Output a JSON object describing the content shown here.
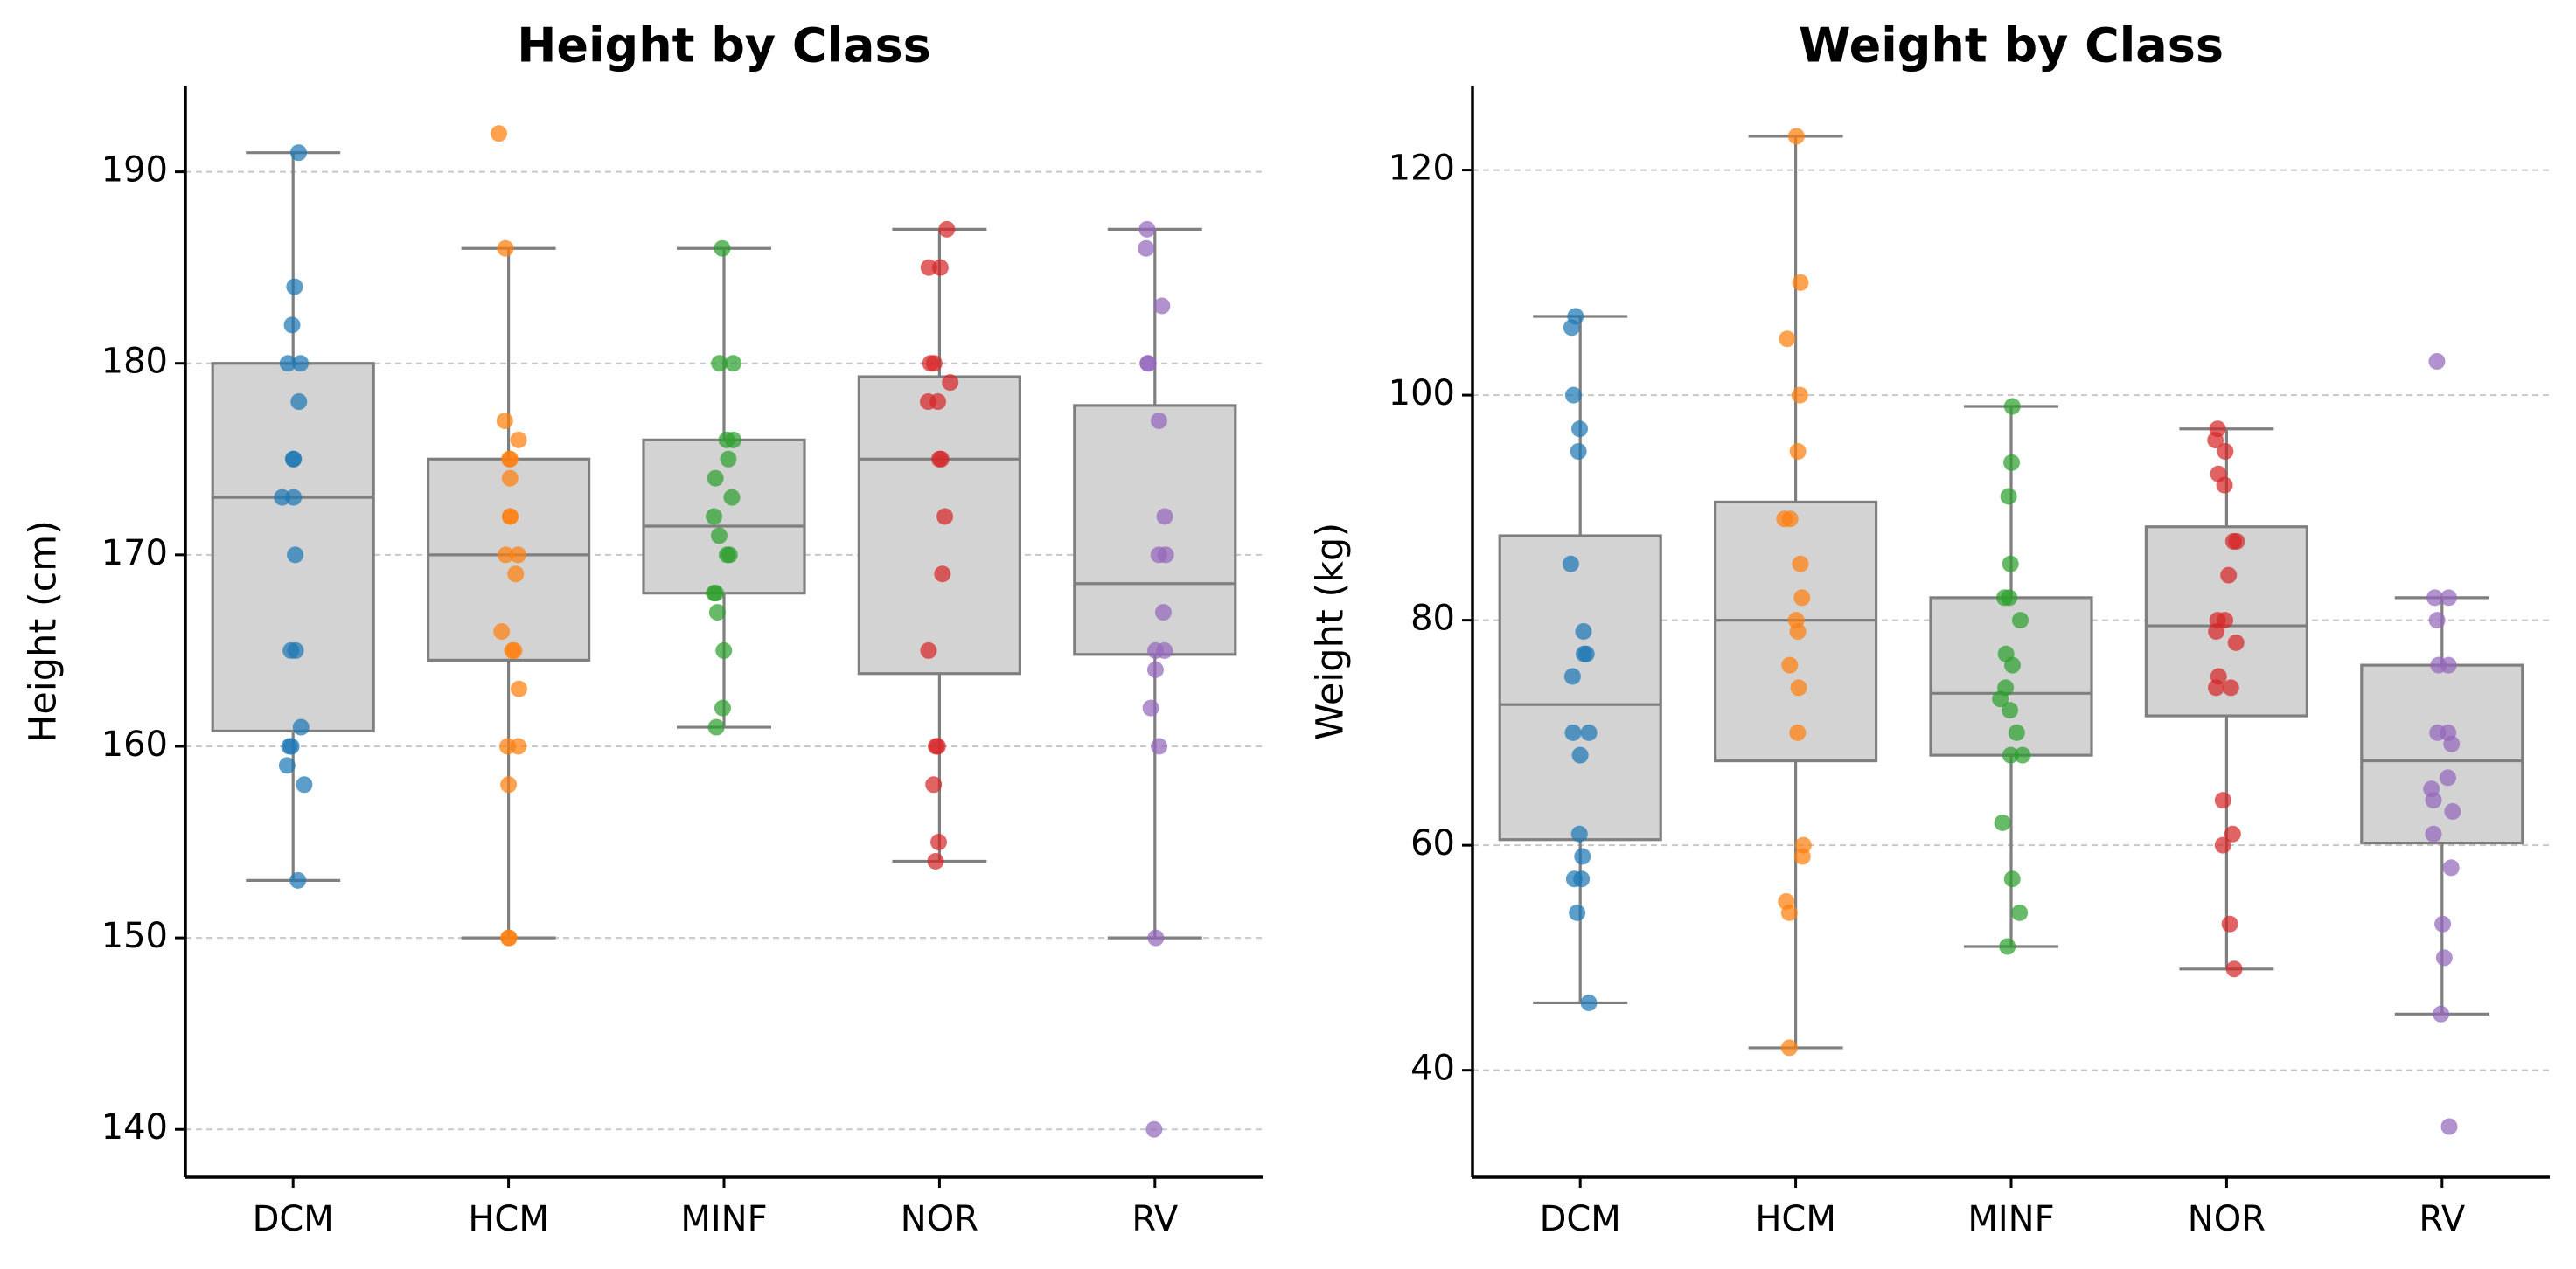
{
  "chart_data": [
    {
      "type": "box",
      "title": "Height by Class",
      "xlabel": "",
      "ylabel": "Height (cm)",
      "ylim": [
        137.5,
        194.5
      ],
      "yticks": [
        140,
        150,
        160,
        170,
        180,
        190
      ],
      "grid": "y dashed",
      "categories": [
        "DCM",
        "HCM",
        "MINF",
        "NOR",
        "RV"
      ],
      "box_color": "#d3d3d3",
      "boxes": [
        {
          "category": "DCM",
          "min": 153,
          "q1": 160.8,
          "median": 173,
          "q3": 180,
          "max": 191
        },
        {
          "category": "HCM",
          "min": 150,
          "q1": 164.5,
          "median": 170,
          "q3": 175,
          "max": 186
        },
        {
          "category": "MINF",
          "min": 161,
          "q1": 168,
          "median": 171.5,
          "q3": 176,
          "max": 186
        },
        {
          "category": "NOR",
          "min": 154,
          "q1": 163.8,
          "median": 175,
          "q3": 179.3,
          "max": 187
        },
        {
          "category": "RV",
          "min": 150,
          "q1": 164.8,
          "median": 168.5,
          "q3": 177.8,
          "max": 187
        }
      ],
      "outliers": [
        {
          "category": "HCM",
          "values": [
            192
          ]
        },
        {
          "category": "RV",
          "values": [
            140
          ]
        }
      ],
      "points": [
        {
          "category": "DCM",
          "color": "#1f77b4",
          "values": [
            191,
            184,
            182,
            180,
            180,
            178,
            175,
            175,
            173,
            173,
            170,
            165,
            165,
            161,
            160,
            160,
            159,
            158,
            153
          ]
        },
        {
          "category": "HCM",
          "color": "#ff7f0e",
          "values": [
            192,
            186,
            177,
            176,
            175,
            175,
            174,
            172,
            172,
            170,
            170,
            169,
            166,
            165,
            165,
            163,
            160,
            160,
            158,
            150,
            150
          ]
        },
        {
          "category": "MINF",
          "color": "#2ca02c",
          "values": [
            186,
            180,
            180,
            176,
            176,
            175,
            174,
            173,
            172,
            171,
            170,
            170,
            168,
            168,
            167,
            165,
            162,
            161
          ]
        },
        {
          "category": "NOR",
          "color": "#d62728",
          "values": [
            187,
            185,
            185,
            180,
            180,
            179,
            178,
            178,
            175,
            175,
            172,
            169,
            165,
            160,
            160,
            158,
            155,
            154
          ]
        },
        {
          "category": "RV",
          "color": "#9467bd",
          "values": [
            187,
            186,
            183,
            180,
            180,
            177,
            172,
            170,
            170,
            167,
            165,
            165,
            164,
            162,
            160,
            150,
            140
          ]
        }
      ]
    },
    {
      "type": "box",
      "title": "Weight by Class",
      "xlabel": "",
      "ylabel": "Weight (kg)",
      "ylim": [
        30.5,
        127.5
      ],
      "yticks": [
        40,
        60,
        80,
        100,
        120
      ],
      "grid": "y dashed",
      "categories": [
        "DCM",
        "HCM",
        "MINF",
        "NOR",
        "RV"
      ],
      "box_color": "#d3d3d3",
      "boxes": [
        {
          "category": "DCM",
          "min": 46,
          "q1": 60.5,
          "median": 72.5,
          "q3": 87.5,
          "max": 107
        },
        {
          "category": "HCM",
          "min": 42,
          "q1": 67.5,
          "median": 80,
          "q3": 90.5,
          "max": 123
        },
        {
          "category": "MINF",
          "min": 51,
          "q1": 68,
          "median": 73.5,
          "q3": 82,
          "max": 99
        },
        {
          "category": "NOR",
          "min": 49,
          "q1": 71.5,
          "median": 79.5,
          "q3": 88.3,
          "max": 97
        },
        {
          "category": "RV",
          "min": 45,
          "q1": 60.2,
          "median": 67.5,
          "q3": 76,
          "max": 82
        }
      ],
      "outliers": [
        {
          "category": "RV",
          "values": [
            103,
            35
          ]
        }
      ],
      "points": [
        {
          "category": "DCM",
          "color": "#1f77b4",
          "values": [
            107,
            106,
            100,
            97,
            95,
            85,
            79,
            77,
            77,
            75,
            70,
            70,
            68,
            61,
            59,
            57,
            57,
            54,
            46
          ]
        },
        {
          "category": "HCM",
          "color": "#ff7f0e",
          "values": [
            123,
            110,
            105,
            100,
            95,
            89,
            89,
            85,
            82,
            80,
            79,
            76,
            74,
            70,
            60,
            59,
            55,
            54,
            42
          ]
        },
        {
          "category": "MINF",
          "color": "#2ca02c",
          "values": [
            99,
            94,
            91,
            85,
            82,
            82,
            80,
            77,
            76,
            74,
            73,
            72,
            70,
            68,
            68,
            62,
            57,
            54,
            51
          ]
        },
        {
          "category": "NOR",
          "color": "#d62728",
          "values": [
            97,
            96,
            95,
            93,
            92,
            87,
            87,
            84,
            80,
            80,
            79,
            78,
            75,
            74,
            74,
            64,
            61,
            60,
            53,
            49
          ]
        },
        {
          "category": "RV",
          "color": "#9467bd",
          "values": [
            103,
            82,
            82,
            80,
            76,
            76,
            70,
            70,
            69,
            66,
            65,
            64,
            63,
            61,
            58,
            53,
            50,
            45,
            35
          ]
        }
      ]
    }
  ]
}
